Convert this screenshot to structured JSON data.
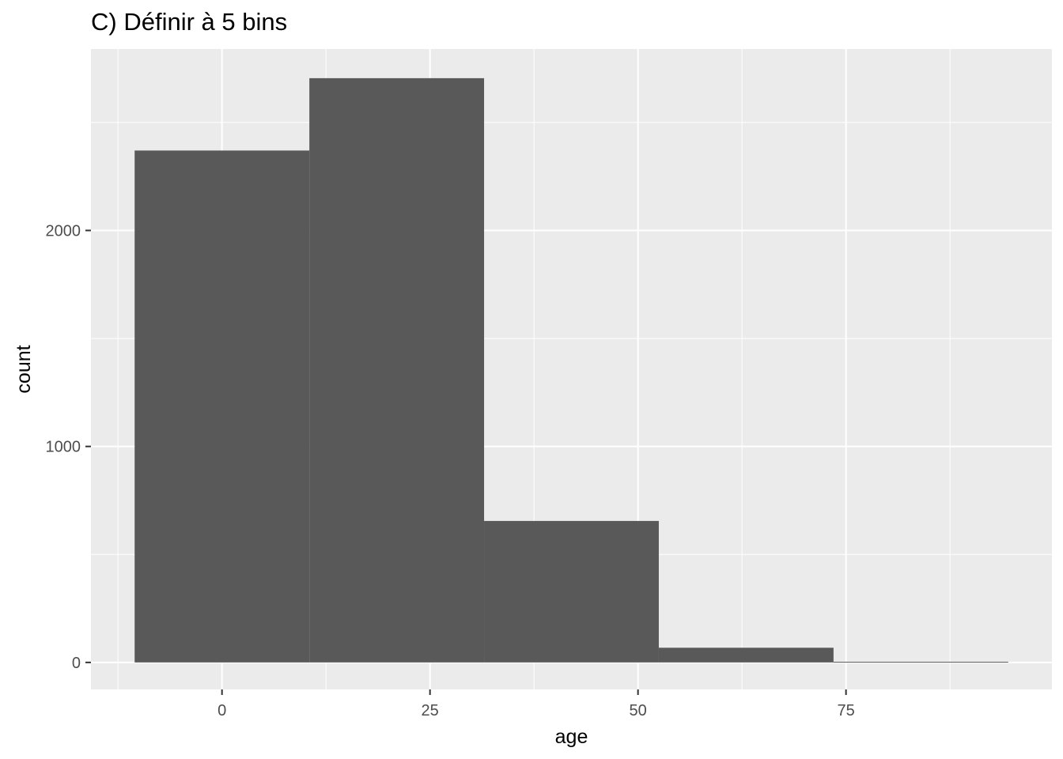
{
  "chart_data": {
    "type": "bar",
    "title": "C) Définir à 5 bins",
    "xlabel": "age",
    "ylabel": "count",
    "bins": [
      {
        "start": -10.5,
        "end": 10.5,
        "count": 2370
      },
      {
        "start": 10.5,
        "end": 31.5,
        "count": 2705
      },
      {
        "start": 31.5,
        "end": 52.5,
        "count": 655
      },
      {
        "start": 52.5,
        "end": 73.5,
        "count": 68
      },
      {
        "start": 73.5,
        "end": 94.5,
        "count": 3
      }
    ],
    "x_ticks": [
      0,
      25,
      50,
      75
    ],
    "x_tick_labels": [
      "0",
      "25",
      "50",
      "75"
    ],
    "y_ticks": [
      0,
      1000,
      2000
    ],
    "y_tick_labels": [
      "0",
      "1000",
      "2000"
    ],
    "xlim": [
      -15.75,
      99.75
    ],
    "ylim": [
      -125,
      2840
    ],
    "grid": true,
    "colors": {
      "panel_background": "#ebebeb",
      "grid_line": "#ffffff",
      "bar_fill": "#595959",
      "tick_text": "#4d4d4d",
      "tick_mark": "#333333"
    }
  }
}
